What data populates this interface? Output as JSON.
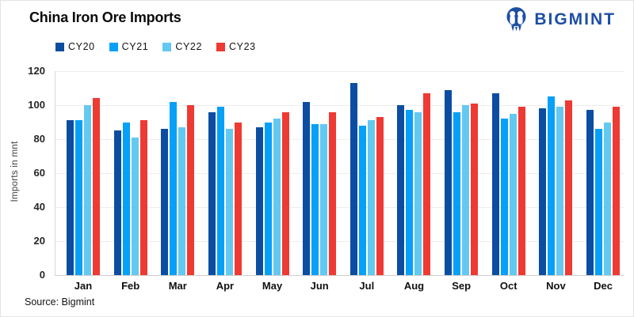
{
  "header": {
    "title": "China Iron Ore Imports",
    "logo_text": "BIGMINT",
    "brand_color": "#1d4fa4"
  },
  "footer": {
    "source": "Source: Bigmint"
  },
  "chart_data": {
    "type": "bar",
    "title": "China Iron Ore Imports",
    "xlabel": "",
    "ylabel": "Imports in mnt",
    "ylim": [
      0,
      120
    ],
    "yticks": [
      0,
      20,
      40,
      60,
      80,
      100,
      120
    ],
    "grid": true,
    "legend_position": "top-left",
    "categories": [
      "Jan",
      "Feb",
      "Mar",
      "Apr",
      "May",
      "Jun",
      "Jul",
      "Aug",
      "Sep",
      "Oct",
      "Nov",
      "Dec"
    ],
    "series": [
      {
        "name": "CY20",
        "color": "#0c4da2",
        "values": [
          91,
          85,
          86,
          96,
          87,
          102,
          113,
          100,
          109,
          107,
          98,
          97
        ]
      },
      {
        "name": "CY21",
        "color": "#05a0f8",
        "values": [
          91,
          90,
          102,
          99,
          90,
          89,
          88,
          97,
          96,
          92,
          105,
          86
        ]
      },
      {
        "name": "CY22",
        "color": "#63c9f1",
        "values": [
          100,
          81,
          87,
          86,
          92,
          89,
          91,
          96,
          100,
          95,
          99,
          90
        ]
      },
      {
        "name": "CY23",
        "color": "#ee3a33",
        "values": [
          104,
          91,
          100,
          90,
          96,
          96,
          93,
          107,
          101,
          99,
          103,
          99
        ]
      }
    ]
  }
}
